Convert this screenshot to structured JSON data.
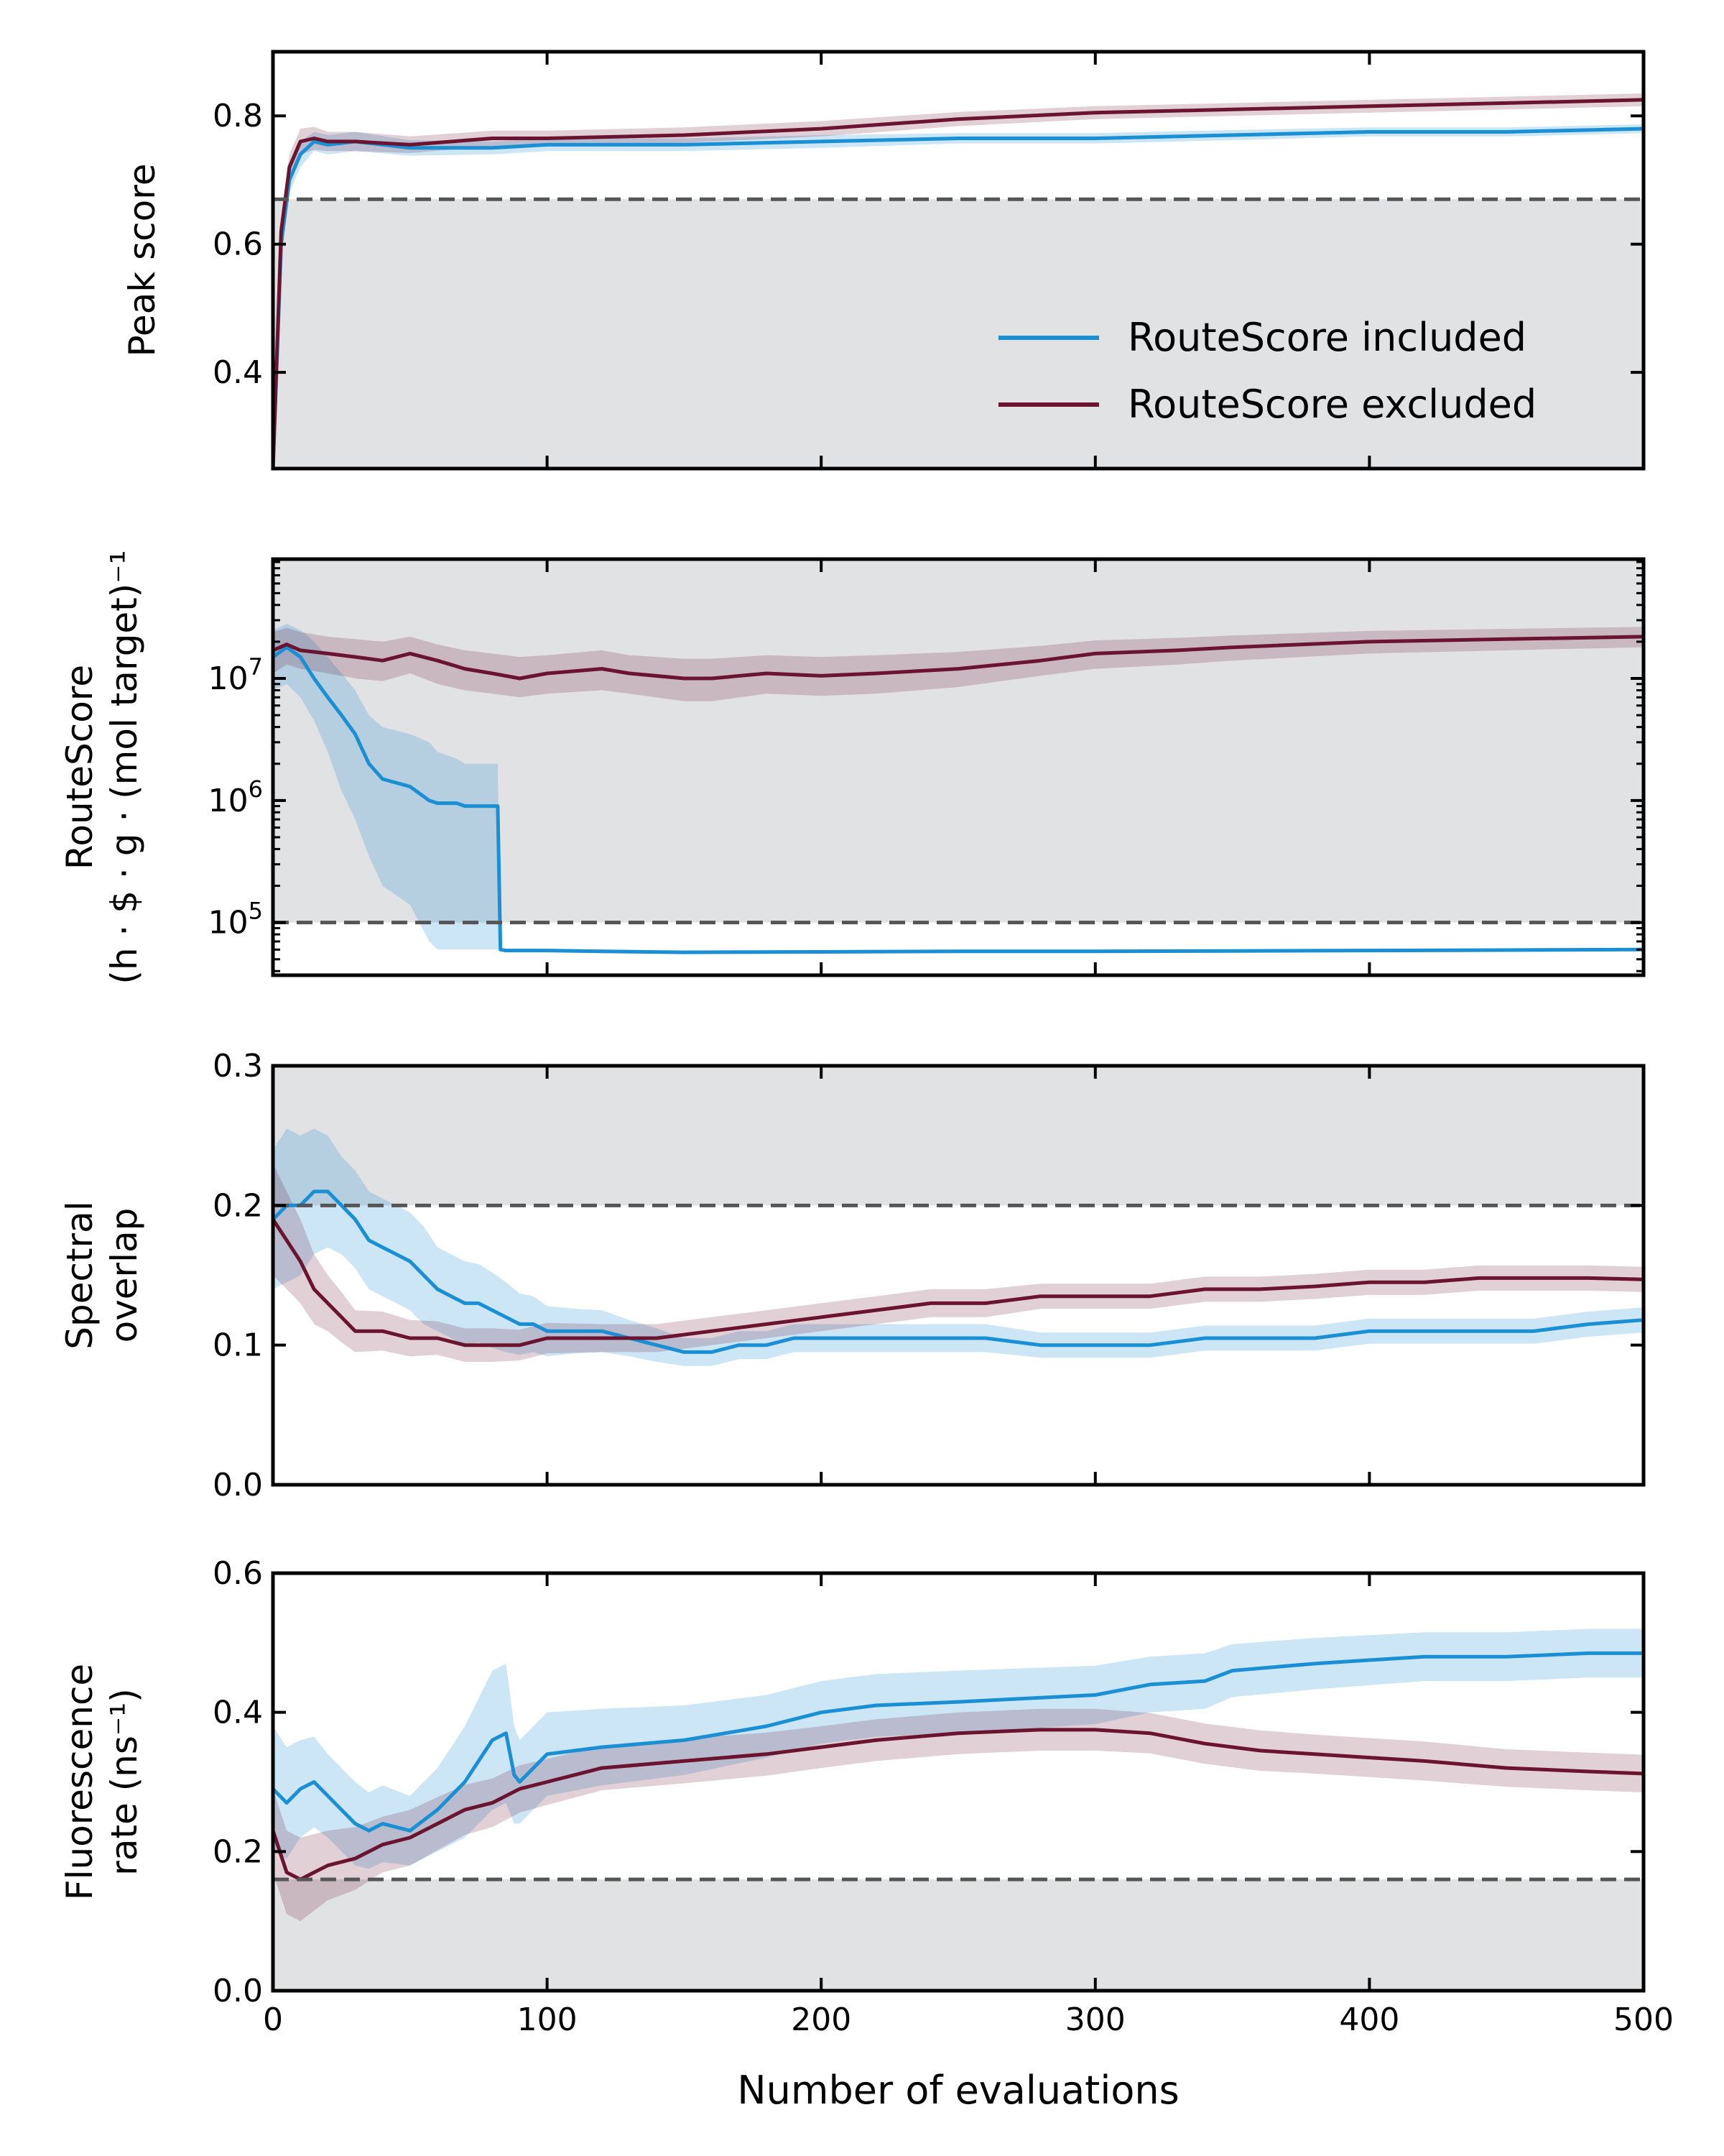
{
  "figure": {
    "xlabel": "Number of evaluations",
    "xlim": [
      0,
      500
    ],
    "xticks": [
      0,
      100,
      200,
      300,
      400,
      500
    ],
    "xtick_labels": [
      "0",
      "100",
      "200",
      "300",
      "400",
      "500"
    ],
    "legend": {
      "placement": "lower-right of top panel",
      "entries": [
        {
          "label": "RouteScore included",
          "color": "#1a8fd4"
        },
        {
          "label": "RouteScore excluded",
          "color": "#6b1430"
        }
      ]
    },
    "colors": {
      "included": "#1a8fd4",
      "excluded": "#6b1430",
      "shaded_region": "#e1e2e4",
      "threshold_line": "#555555"
    }
  },
  "chart_data": [
    {
      "type": "line",
      "ylabel": "Peak score",
      "ylim": [
        0.25,
        0.9
      ],
      "yscale": "linear",
      "yticks": [
        0.4,
        0.6,
        0.8
      ],
      "ytick_labels": [
        "0.4",
        "0.6",
        "0.8"
      ],
      "threshold": 0.67,
      "shade": "below",
      "series": [
        {
          "name": "RouteScore included",
          "x": [
            0,
            3,
            6,
            10,
            15,
            20,
            30,
            50,
            80,
            100,
            150,
            200,
            250,
            300,
            350,
            400,
            450,
            500
          ],
          "y": [
            0.25,
            0.6,
            0.7,
            0.74,
            0.76,
            0.755,
            0.76,
            0.75,
            0.75,
            0.755,
            0.755,
            0.76,
            0.765,
            0.765,
            0.77,
            0.775,
            0.775,
            0.78
          ],
          "band": [
            0.015,
            0.02,
            0.02,
            0.02,
            0.015,
            0.015,
            0.015,
            0.012,
            0.01,
            0.01,
            0.01,
            0.01,
            0.008,
            0.008,
            0.008,
            0.007,
            0.007,
            0.007
          ]
        },
        {
          "name": "RouteScore excluded",
          "x": [
            0,
            3,
            6,
            10,
            15,
            20,
            30,
            50,
            80,
            100,
            150,
            200,
            250,
            300,
            350,
            400,
            450,
            500
          ],
          "y": [
            0.25,
            0.62,
            0.72,
            0.76,
            0.765,
            0.76,
            0.76,
            0.755,
            0.765,
            0.765,
            0.77,
            0.78,
            0.795,
            0.805,
            0.81,
            0.815,
            0.82,
            0.825
          ],
          "band": [
            0.015,
            0.02,
            0.02,
            0.02,
            0.018,
            0.015,
            0.015,
            0.013,
            0.012,
            0.012,
            0.012,
            0.012,
            0.011,
            0.01,
            0.01,
            0.01,
            0.01,
            0.01
          ]
        }
      ]
    },
    {
      "type": "line",
      "ylabel": "RouteScore",
      "ylabel2": "(h · $ · g · (mol target)⁻¹",
      "ylim": [
        37000,
        95000000
      ],
      "yscale": "log",
      "yticks": [
        100000,
        1000000,
        10000000
      ],
      "ytick_labels": [
        {
          "base": "10",
          "exp": "5"
        },
        {
          "base": "10",
          "exp": "6"
        },
        {
          "base": "10",
          "exp": "7"
        }
      ],
      "threshold": 100000,
      "shade": "above",
      "series": [
        {
          "name": "RouteScore included",
          "x": [
            0,
            5,
            10,
            15,
            20,
            25,
            30,
            35,
            40,
            50,
            57,
            60,
            67,
            70,
            76,
            78,
            82,
            83,
            85,
            100,
            120,
            150,
            200,
            250,
            300,
            350,
            400,
            450,
            500
          ],
          "y": [
            15000000,
            18000000,
            15000000,
            10000000,
            7000000,
            5000000,
            3500000,
            2000000,
            1500000,
            1300000,
            1000000,
            950000,
            950000,
            900000,
            900000,
            900000,
            900000,
            60000,
            59000,
            59000,
            58000,
            57000,
            57500,
            58000,
            58000,
            58500,
            59000,
            59500,
            60000
          ],
          "band_lo": [
            8000000,
            9000000,
            7000000,
            4500000,
            2500000,
            1200000,
            700000,
            350000,
            200000,
            140000,
            70000,
            60000,
            60000,
            60000,
            60000,
            60000,
            60000,
            58000,
            57000,
            57000,
            56000,
            55000,
            56000,
            56500,
            56500,
            57000,
            57500,
            58000,
            58500
          ],
          "band_hi": [
            25000000,
            28000000,
            25000000,
            20000000,
            15000000,
            11000000,
            8000000,
            5000000,
            4000000,
            3500000,
            3000000,
            2500000,
            2200000,
            2000000,
            2000000,
            2000000,
            2000000,
            62000,
            61000,
            61000,
            60000,
            59000,
            59500,
            60000,
            60000,
            60500,
            61000,
            61500,
            62000
          ]
        },
        {
          "name": "RouteScore excluded",
          "x": [
            0,
            5,
            10,
            20,
            30,
            40,
            50,
            60,
            70,
            80,
            90,
            100,
            120,
            130,
            150,
            160,
            180,
            200,
            220,
            250,
            280,
            300,
            330,
            350,
            400,
            450,
            500
          ],
          "y": [
            17000000,
            19000000,
            17000000,
            16000000,
            15000000,
            14000000,
            16000000,
            14000000,
            12000000,
            11000000,
            10000000,
            11000000,
            12000000,
            11000000,
            10000000,
            10000000,
            11000000,
            10500000,
            11000000,
            12000000,
            14000000,
            16000000,
            17000000,
            18000000,
            20000000,
            21000000,
            22000000
          ],
          "band_lo": [
            11000000,
            13000000,
            12000000,
            11000000,
            10000000,
            9500000,
            11000000,
            9000000,
            8000000,
            7500000,
            7000000,
            7500000,
            8000000,
            7500000,
            6500000,
            6500000,
            7500000,
            7200000,
            7500000,
            8500000,
            10500000,
            12000000,
            13000000,
            14000000,
            16000000,
            17000000,
            18000000
          ],
          "band_hi": [
            24000000,
            26000000,
            24000000,
            22000000,
            21000000,
            20000000,
            22000000,
            19000000,
            17000000,
            16000000,
            15000000,
            15500000,
            17000000,
            15500000,
            14500000,
            14500000,
            15500000,
            15000000,
            15500000,
            16500000,
            18500000,
            20500000,
            21500000,
            22500000,
            24500000,
            25500000,
            26500000
          ]
        }
      ]
    },
    {
      "type": "line",
      "ylabel": "Spectral",
      "ylabel2": "overlap",
      "ylim": [
        0,
        0.3
      ],
      "yscale": "linear",
      "yticks": [
        0.0,
        0.1,
        0.2,
        0.3
      ],
      "ytick_labels": [
        "0.0",
        "0.1",
        "0.2",
        "0.3"
      ],
      "threshold": 0.2,
      "shade": "above",
      "series": [
        {
          "name": "RouteScore included",
          "x": [
            0,
            5,
            10,
            15,
            20,
            25,
            30,
            35,
            40,
            45,
            50,
            55,
            60,
            65,
            70,
            75,
            80,
            85,
            90,
            95,
            100,
            110,
            120,
            130,
            140,
            150,
            160,
            170,
            180,
            190,
            200,
            220,
            240,
            260,
            280,
            300,
            320,
            340,
            360,
            380,
            400,
            420,
            440,
            460,
            480,
            500
          ],
          "y": [
            0.19,
            0.2,
            0.2,
            0.21,
            0.21,
            0.2,
            0.19,
            0.175,
            0.17,
            0.165,
            0.16,
            0.15,
            0.14,
            0.135,
            0.13,
            0.13,
            0.125,
            0.12,
            0.115,
            0.115,
            0.11,
            0.11,
            0.11,
            0.105,
            0.1,
            0.095,
            0.095,
            0.1,
            0.1,
            0.105,
            0.105,
            0.105,
            0.105,
            0.105,
            0.1,
            0.1,
            0.1,
            0.105,
            0.105,
            0.105,
            0.11,
            0.11,
            0.11,
            0.11,
            0.115,
            0.118
          ],
          "band": [
            0.05,
            0.055,
            0.05,
            0.045,
            0.04,
            0.035,
            0.035,
            0.035,
            0.035,
            0.035,
            0.035,
            0.035,
            0.03,
            0.03,
            0.03,
            0.028,
            0.027,
            0.025,
            0.022,
            0.02,
            0.018,
            0.016,
            0.015,
            0.013,
            0.012,
            0.01,
            0.01,
            0.01,
            0.01,
            0.01,
            0.01,
            0.01,
            0.01,
            0.01,
            0.009,
            0.009,
            0.009,
            0.009,
            0.009,
            0.009,
            0.009,
            0.009,
            0.009,
            0.009,
            0.009,
            0.009
          ]
        },
        {
          "name": "RouteScore excluded",
          "x": [
            0,
            5,
            10,
            15,
            20,
            25,
            30,
            40,
            50,
            60,
            70,
            80,
            90,
            100,
            120,
            140,
            160,
            180,
            200,
            220,
            240,
            260,
            280,
            300,
            320,
            340,
            360,
            380,
            400,
            420,
            440,
            460,
            480,
            500
          ],
          "y": [
            0.19,
            0.175,
            0.16,
            0.14,
            0.13,
            0.12,
            0.11,
            0.11,
            0.105,
            0.105,
            0.1,
            0.1,
            0.1,
            0.105,
            0.105,
            0.105,
            0.11,
            0.115,
            0.12,
            0.125,
            0.13,
            0.13,
            0.135,
            0.135,
            0.135,
            0.14,
            0.14,
            0.142,
            0.145,
            0.145,
            0.148,
            0.148,
            0.148,
            0.147
          ],
          "band": [
            0.04,
            0.035,
            0.03,
            0.025,
            0.02,
            0.018,
            0.015,
            0.014,
            0.013,
            0.012,
            0.012,
            0.012,
            0.011,
            0.011,
            0.01,
            0.01,
            0.01,
            0.01,
            0.01,
            0.01,
            0.01,
            0.01,
            0.009,
            0.009,
            0.009,
            0.009,
            0.009,
            0.009,
            0.009,
            0.009,
            0.009,
            0.009,
            0.009,
            0.009
          ]
        }
      ]
    },
    {
      "type": "line",
      "ylabel": "Fluorescence",
      "ylabel2": "rate (ns⁻¹)",
      "ylim": [
        0,
        0.6
      ],
      "yscale": "linear",
      "yticks": [
        0.0,
        0.2,
        0.4,
        0.6
      ],
      "ytick_labels": [
        "0.0",
        "0.2",
        "0.4",
        "0.6"
      ],
      "threshold": 0.16,
      "shade": "below",
      "series": [
        {
          "name": "RouteScore included",
          "x": [
            0,
            5,
            10,
            15,
            20,
            25,
            30,
            35,
            40,
            50,
            60,
            70,
            80,
            85,
            88,
            90,
            100,
            120,
            150,
            180,
            200,
            220,
            250,
            300,
            320,
            340,
            350,
            380,
            400,
            420,
            450,
            480,
            500
          ],
          "y": [
            0.29,
            0.27,
            0.29,
            0.3,
            0.28,
            0.26,
            0.24,
            0.23,
            0.24,
            0.23,
            0.26,
            0.3,
            0.36,
            0.37,
            0.31,
            0.3,
            0.34,
            0.35,
            0.36,
            0.38,
            0.4,
            0.41,
            0.415,
            0.425,
            0.44,
            0.445,
            0.46,
            0.47,
            0.475,
            0.48,
            0.48,
            0.485,
            0.485
          ],
          "band": [
            0.09,
            0.08,
            0.07,
            0.065,
            0.06,
            0.06,
            0.06,
            0.055,
            0.055,
            0.05,
            0.06,
            0.08,
            0.1,
            0.1,
            0.07,
            0.06,
            0.06,
            0.055,
            0.05,
            0.045,
            0.045,
            0.045,
            0.045,
            0.042,
            0.04,
            0.04,
            0.038,
            0.037,
            0.036,
            0.035,
            0.035,
            0.035,
            0.035
          ]
        },
        {
          "name": "RouteScore excluded",
          "x": [
            0,
            5,
            10,
            15,
            20,
            30,
            40,
            50,
            60,
            70,
            80,
            90,
            100,
            120,
            150,
            180,
            200,
            220,
            250,
            280,
            300,
            320,
            340,
            360,
            380,
            400,
            420,
            450,
            480,
            500
          ],
          "y": [
            0.23,
            0.17,
            0.16,
            0.17,
            0.18,
            0.19,
            0.21,
            0.22,
            0.24,
            0.26,
            0.27,
            0.29,
            0.3,
            0.32,
            0.33,
            0.34,
            0.35,
            0.36,
            0.37,
            0.375,
            0.375,
            0.37,
            0.355,
            0.345,
            0.34,
            0.335,
            0.33,
            0.32,
            0.315,
            0.312
          ],
          "band": [
            0.06,
            0.06,
            0.06,
            0.055,
            0.05,
            0.045,
            0.04,
            0.04,
            0.038,
            0.036,
            0.035,
            0.034,
            0.033,
            0.032,
            0.032,
            0.031,
            0.03,
            0.03,
            0.03,
            0.03,
            0.03,
            0.029,
            0.029,
            0.029,
            0.028,
            0.028,
            0.028,
            0.027,
            0.027,
            0.027
          ]
        }
      ]
    }
  ]
}
